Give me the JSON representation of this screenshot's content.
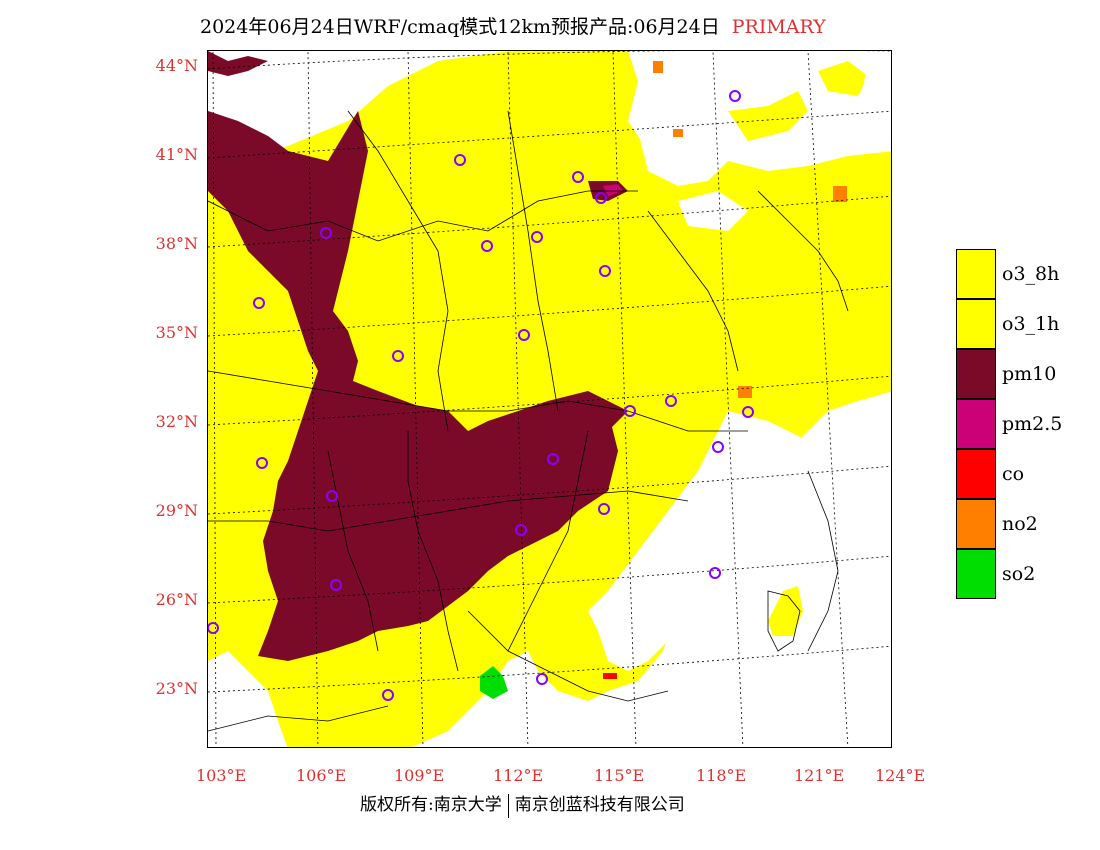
{
  "title": {
    "main": "2024年06月24日WRF/cmaq模式12km预报产品:06月24日",
    "tag": "PRIMARY"
  },
  "map": {
    "lat_labels": [
      "44°N",
      "41°N",
      "38°N",
      "35°N",
      "32°N",
      "29°N",
      "26°N",
      "23°N"
    ],
    "lon_labels": [
      "103°E",
      "106°E",
      "109°E",
      "112°E",
      "115°E",
      "118°E",
      "121°E",
      "124°E"
    ],
    "colors": {
      "o3": "#ffff00",
      "pm10": "#7a0a28",
      "pm25": "#cc0077",
      "co": "#ff0000",
      "no2": "#ff7f00",
      "so2": "#00dd00",
      "station": "#8a00ff"
    }
  },
  "legend": [
    {
      "label": "o3_8h",
      "color": "#ffff00"
    },
    {
      "label": "o3_1h",
      "color": "#ffff00"
    },
    {
      "label": "pm10",
      "color": "#7a0a28"
    },
    {
      "label": "pm2.5",
      "color": "#cc0077"
    },
    {
      "label": "co",
      "color": "#ff0000"
    },
    {
      "label": "no2",
      "color": "#ff7f00"
    },
    {
      "label": "so2",
      "color": "#00dd00"
    }
  ],
  "footer": {
    "left": "版权所有:南京大学",
    "right": "南京创蓝科技有限公司"
  }
}
